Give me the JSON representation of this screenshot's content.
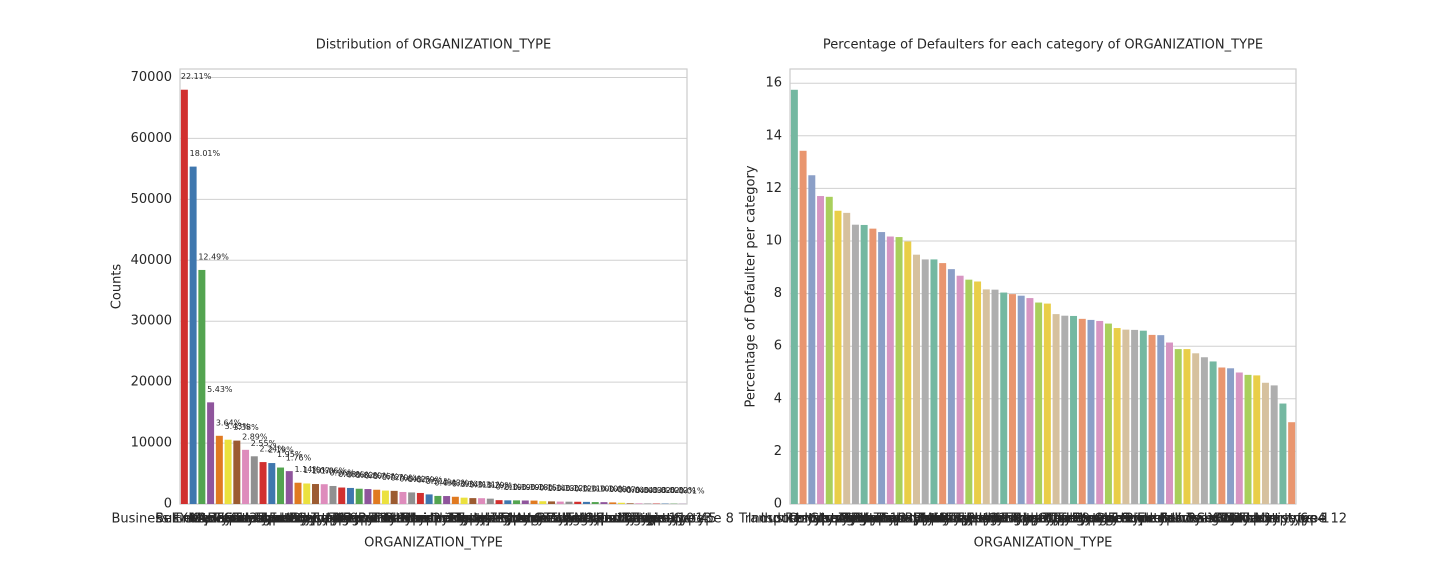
{
  "chart_data": [
    {
      "type": "bar",
      "title": "Distribution of ORGANIZATION_TYPE",
      "x_label": "ORGANIZATION_TYPE",
      "y_label": "Counts",
      "categories": [
        "Business Entity Type 3",
        "XNA",
        "Self-employed",
        "Other",
        "Medicine",
        "Business Entity Type 2",
        "Government",
        "School",
        "Trade: type 7",
        "Kindergarten",
        "Construction",
        "Business Entity Type 1",
        "Transport: type 4",
        "Trade: type 3",
        "Industry: type 9",
        "Industry: type 3",
        "Security",
        "Housing",
        "Industry: type 11",
        "Military",
        "Bank",
        "Agriculture",
        "Police",
        "Transport: type 2",
        "Postal",
        "Security Ministries",
        "Trade: type 2",
        "Restaurant",
        "Services",
        "University",
        "Industry: type 7",
        "Transport: type 3",
        "Industry: type 1",
        "Hotel",
        "Electricity",
        "Industry: type 4",
        "Trade: type 6",
        "Industry: type 5",
        "Insurance",
        "Telecom",
        "Emergency",
        "Industry: type 2",
        "Advertising",
        "Realtor",
        "Culture",
        "Industry: type 12",
        "Trade: type 1",
        "Mobile",
        "Legal Services",
        "Cleaning",
        "Transport: type 1",
        "Industry: type 6",
        "Industry: type 10",
        "Religion",
        "Industry: type 13",
        "Trade: type 4",
        "Trade: type 5",
        "Industry: type 8"
      ],
      "values": [
        67992,
        55374,
        38412,
        16683,
        11193,
        10553,
        10404,
        8893,
        7831,
        6880,
        6721,
        5984,
        5398,
        3492,
        3368,
        3278,
        3247,
        2958,
        2704,
        2634,
        2507,
        2454,
        2341,
        2204,
        2157,
        1974,
        1900,
        1811,
        1575,
        1327,
        1307,
        1187,
        1039,
        966,
        950,
        877,
        631,
        599,
        597,
        577,
        560,
        458,
        429,
        396,
        379,
        369,
        348,
        317,
        305,
        260,
        201,
        112,
        109,
        85,
        67,
        64,
        49,
        24
      ],
      "annotations": [
        "22.11%",
        "18.01%",
        "12.49%",
        "5.43%",
        "3.64%",
        "3.43%",
        "3.38%",
        "2.89%",
        "2.55%",
        "2.24%",
        "2.19%",
        "1.95%",
        "1.76%",
        "1.14%",
        "1.10%",
        "1.07%",
        "1.06%",
        "0.96%",
        "0.88%",
        "0.86%",
        "0.82%",
        "0.80%",
        "0.76%",
        "0.72%",
        "0.70%",
        "0.64%",
        "0.62%",
        "0.59%",
        "0.51%",
        "0.43%",
        "0.43%",
        "0.39%",
        "0.34%",
        "0.31%",
        "0.31%",
        "0.29%",
        "0.21%",
        "0.19%",
        "0.19%",
        "0.19%",
        "0.18%",
        "0.15%",
        "0.14%",
        "0.13%",
        "0.12%",
        "0.12%",
        "0.11%",
        "0.10%",
        "0.10%",
        "0.08%",
        "0.07%",
        "0.04%",
        "0.04%",
        "0.03%",
        "0.02%",
        "0.02%",
        "0.02%",
        "0.01%"
      ],
      "colors": [
        "#d1302f",
        "#3f77ae",
        "#53a450",
        "#8f559c",
        "#e07a21",
        "#ebe13e",
        "#9c5b31",
        "#de8cbc",
        "#909090"
      ],
      "ylim": [
        0,
        71392
      ],
      "yticks": [
        0,
        10000,
        20000,
        30000,
        40000,
        50000,
        60000,
        70000
      ],
      "grid": true
    },
    {
      "type": "bar",
      "title": "Percentage of Defaulters for each category of ORGANIZATION_TYPE",
      "x_label": "ORGANIZATION_TYPE",
      "y_label": "Percentage of Defaulter per category",
      "categories": [
        "Transport: type 3",
        "Industry: type 13",
        "Industry: type 8",
        "Restaurant",
        "Construction",
        "Cleaning",
        "Industry: type 1",
        "Industry: type 3",
        "Realtor",
        "Agriculture",
        "Trade: type 3",
        "Self-employed",
        "Industry: type 4",
        "Security",
        "Trade: type 7",
        "Business Entity Type 3",
        "Transport: type 4",
        "Mobile",
        "Industry: type 11",
        "Trade: type 1",
        "Industry: type 7",
        "Business Entity Type 2",
        "Postal",
        "Housing",
        "Transport: type 2",
        "Business Entity Type 1",
        "Legal Services",
        "Industry: type 2",
        "Industry: type 9",
        "Advertising",
        "Other",
        "Industry: type 5",
        "Industry: type 10",
        "Telecom",
        "Trade: type 2",
        "Kindergarten",
        "Emergency",
        "Industry: type 6",
        "Medicine",
        "Government",
        "School",
        "Trade: type 5",
        "Hotel",
        "Electricity",
        "Police",
        "Services",
        "Insurance",
        "University",
        "Religion",
        "XNA",
        "Bank",
        "Culture",
        "Military",
        "Security Ministries",
        "Trade: type 6",
        "Transport: type 1",
        "Trade: type 4",
        "Industry: type 12"
      ],
      "values": [
        15.75,
        13.43,
        12.5,
        11.71,
        11.68,
        11.15,
        11.07,
        10.62,
        10.61,
        10.47,
        10.34,
        10.17,
        10.15,
        9.98,
        9.48,
        9.3,
        9.3,
        9.16,
        8.93,
        8.68,
        8.53,
        8.46,
        8.16,
        8.15,
        8.04,
        7.98,
        7.92,
        7.83,
        7.66,
        7.62,
        7.22,
        7.16,
        7.15,
        7.04,
        7.0,
        6.96,
        6.86,
        6.69,
        6.63,
        6.62,
        6.59,
        6.43,
        6.42,
        6.14,
        5.89,
        5.89,
        5.73,
        5.58,
        5.42,
        5.19,
        5.16,
        5.0,
        4.91,
        4.89,
        4.61,
        4.51,
        3.82,
        3.11
      ],
      "colors": [
        "#74b8a1",
        "#e9966f",
        "#8b9fc7",
        "#d795c2",
        "#a9cf5c",
        "#e9ce48",
        "#d6c19e",
        "#aeaeae"
      ],
      "ylim": [
        0,
        16.54
      ],
      "yticks": [
        0,
        2,
        4,
        6,
        8,
        10,
        12,
        14,
        16
      ],
      "grid": true
    }
  ]
}
